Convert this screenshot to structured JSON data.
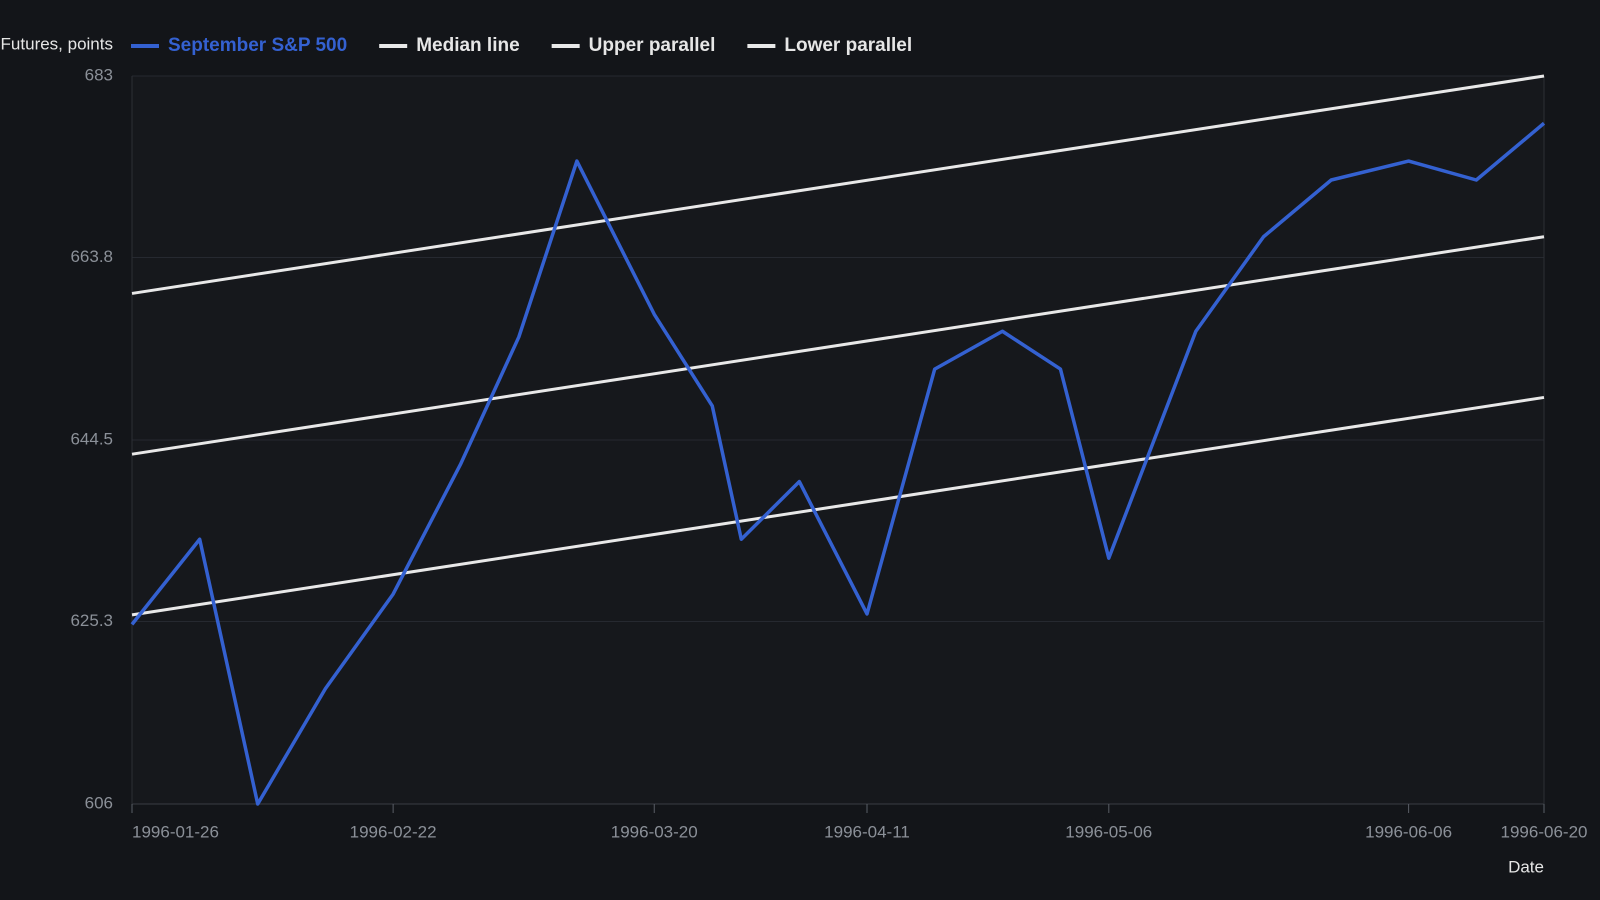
{
  "chart_data": {
    "type": "line",
    "y_label": "Futures, points",
    "x_label": "Date",
    "xlim": [
      "1996-01-26",
      "1996-06-20"
    ],
    "xticks": [
      "1996-01-26",
      "1996-02-22",
      "1996-03-20",
      "1996-04-11",
      "1996-05-06",
      "1996-06-06",
      "1996-06-20"
    ],
    "ylim": [
      606,
      683
    ],
    "yticks": [
      606,
      625.3,
      644.5,
      663.8,
      683
    ],
    "grid": true,
    "series": [
      {
        "name": "September S&P 500",
        "color": "#3461d1",
        "x": [
          "1996-01-26",
          "1996-02-02",
          "1996-02-08",
          "1996-02-15",
          "1996-02-22",
          "1996-02-29",
          "1996-03-06",
          "1996-03-12",
          "1996-03-20",
          "1996-03-26",
          "1996-03-29",
          "1996-04-04",
          "1996-04-11",
          "1996-04-18",
          "1996-04-25",
          "1996-05-01",
          "1996-05-06",
          "1996-05-15",
          "1996-05-22",
          "1996-05-29",
          "1996-06-06",
          "1996-06-13",
          "1996-06-20"
        ],
        "values": [
          625.0,
          634.0,
          606.0,
          618.2,
          628.2,
          642.0,
          655.4,
          674.0,
          657.8,
          648.1,
          634.0,
          640.1,
          626.1,
          652.0,
          656.0,
          652.0,
          632.0,
          656.0,
          666.0,
          672.0,
          674.0,
          672.0,
          678.0
        ]
      },
      {
        "name": "Median line",
        "color": "#e8e8e8",
        "x": [
          "1996-01-26",
          "1996-06-20"
        ],
        "values": [
          643.0,
          666.0
        ]
      },
      {
        "name": "Upper parallel",
        "color": "#e8e8e8",
        "x": [
          "1996-01-26",
          "1996-06-20"
        ],
        "values": [
          660.0,
          683.0
        ]
      },
      {
        "name": "Lower parallel",
        "color": "#e8e8e8",
        "x": [
          "1996-01-26",
          "1996-06-20"
        ],
        "values": [
          626.0,
          649.0
        ]
      }
    ]
  }
}
